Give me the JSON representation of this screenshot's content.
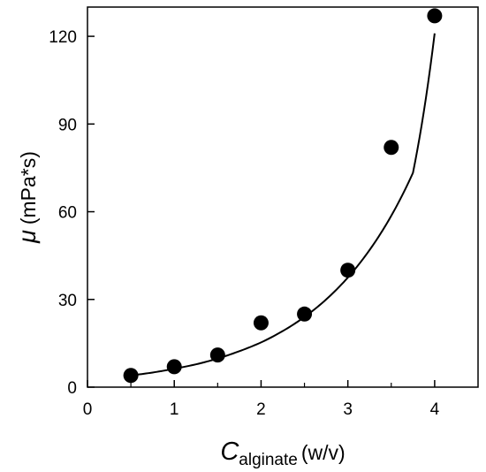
{
  "chart_data": {
    "type": "scatter",
    "series": [
      {
        "x": [
          0.5,
          1.0,
          1.5,
          2.0,
          2.5,
          3.0,
          3.5,
          4.0
        ],
        "y": [
          4,
          7,
          11,
          22,
          25,
          40,
          82,
          127
        ]
      }
    ],
    "fit_curve": {
      "type": "exponential",
      "x": [
        0.5,
        0.75,
        1.0,
        1.25,
        1.5,
        1.75,
        2.0,
        2.25,
        2.5,
        2.75,
        3.0,
        3.25,
        3.5,
        3.75,
        4.0
      ],
      "y": [
        4.0,
        5.0,
        6.3,
        7.8,
        9.8,
        12.3,
        15.3,
        19.2,
        24.0,
        30.0,
        37.5,
        46.9,
        58.6,
        73.3,
        121.0
      ]
    },
    "xlim": [
      0,
      4.5
    ],
    "ylim": [
      0,
      130
    ],
    "x_ticks": [
      "0",
      "1",
      "2",
      "3",
      "4"
    ],
    "y_ticks": [
      "0",
      "30",
      "60",
      "90",
      "120"
    ],
    "xlabel": {
      "main": "C",
      "subscript": "alginate",
      "unit": "(w/v)"
    },
    "ylabel": {
      "main": "μ",
      "unit": "(mPa*s)"
    },
    "marker_color": "#000000",
    "line_color": "#000000",
    "grid": false,
    "legend": "none"
  }
}
